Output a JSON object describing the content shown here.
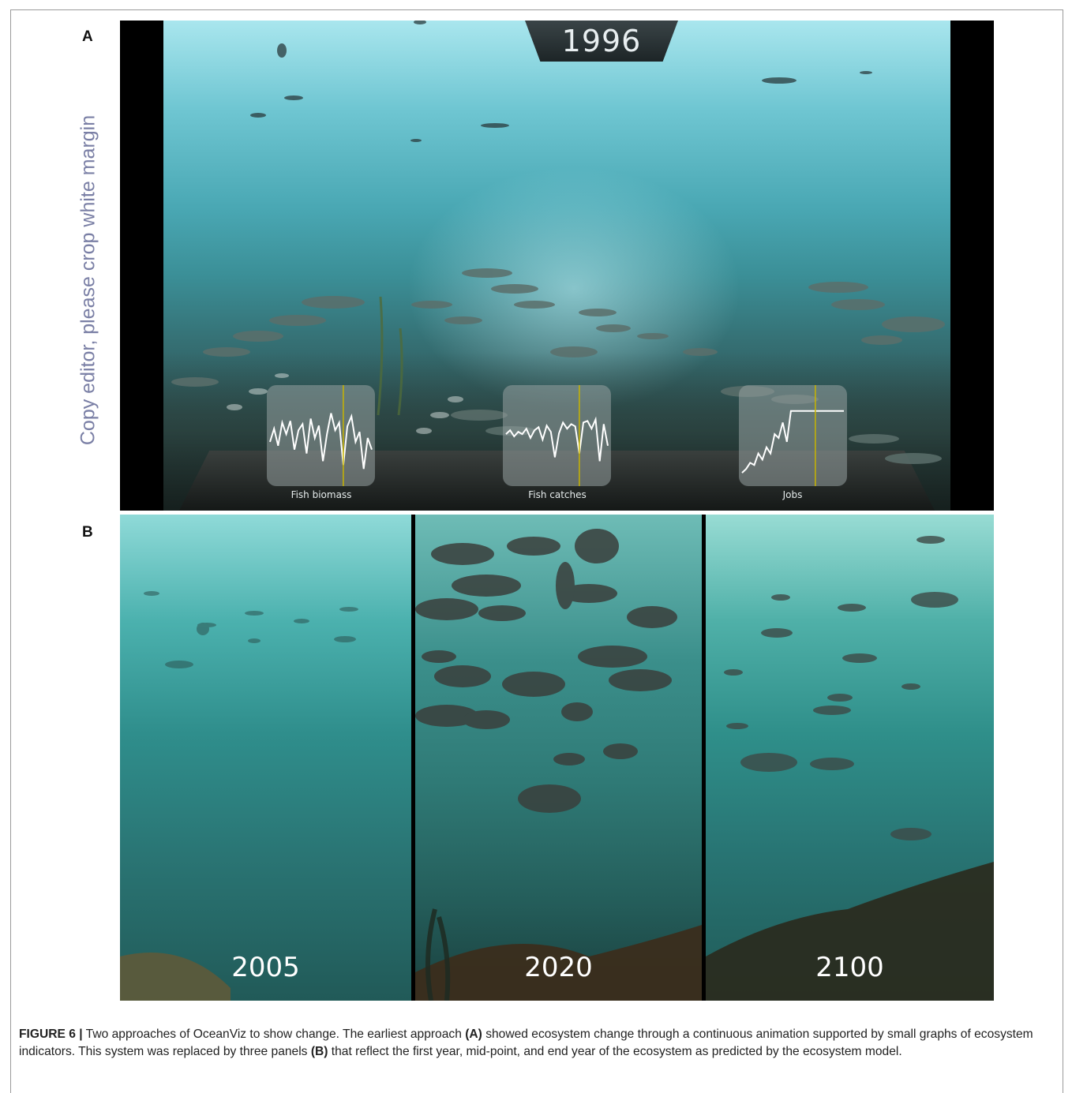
{
  "panels": {
    "a_letter": "A",
    "b_letter": "B"
  },
  "side_note": "Copy editor, please crop white margin",
  "panel_a": {
    "year": "1996",
    "charts": [
      {
        "label": "Fish biomass",
        "values": [
          0.45,
          0.62,
          0.4,
          0.7,
          0.55,
          0.72,
          0.35,
          0.6,
          0.68,
          0.3,
          0.75,
          0.5,
          0.66,
          0.2,
          0.55,
          0.82,
          0.6,
          0.7,
          0.15,
          0.65,
          0.78,
          0.45,
          0.58,
          0.1,
          0.5,
          0.35
        ],
        "marker": 0.72
      },
      {
        "label": "Fish catches",
        "values": [
          0.55,
          0.6,
          0.52,
          0.58,
          0.55,
          0.62,
          0.5,
          0.6,
          0.64,
          0.48,
          0.66,
          0.58,
          0.25,
          0.56,
          0.7,
          0.62,
          0.68,
          0.65,
          0.3,
          0.7,
          0.72,
          0.62,
          0.74,
          0.2,
          0.68,
          0.4
        ],
        "marker": 0.72
      },
      {
        "label": "Jobs",
        "values": [
          0.05,
          0.1,
          0.18,
          0.15,
          0.3,
          0.22,
          0.38,
          0.3,
          0.55,
          0.5,
          0.7,
          0.45,
          0.85,
          0.85,
          0.85,
          0.85,
          0.85,
          0.85,
          0.85,
          0.85,
          0.85,
          0.85,
          0.85,
          0.85,
          0.85,
          0.85
        ],
        "marker": 0.72
      }
    ]
  },
  "panel_b": {
    "years": [
      "2005",
      "2020",
      "2100"
    ]
  },
  "caption": {
    "figure_label": "FIGURE 6 |",
    "text_1": " Two approaches of OceanViz to show change. The earliest approach ",
    "ref_a": "(A)",
    "text_2": " showed ecosystem change through a continuous animation supported by small graphs of ecosystem indicators. This system was replaced by three panels ",
    "ref_b": "(B)",
    "text_3": " that reflect the first year, mid-point, and end year of the ecosystem as predicted by the ecosystem model."
  },
  "colors": {
    "sea_light": "#a9e6ee",
    "sea_mid": "#3b8f97",
    "sea_deep": "#243d3d",
    "chart_line": "#ffffff",
    "chart_marker": "#c8b400",
    "side_note": "#7a7fa5"
  }
}
